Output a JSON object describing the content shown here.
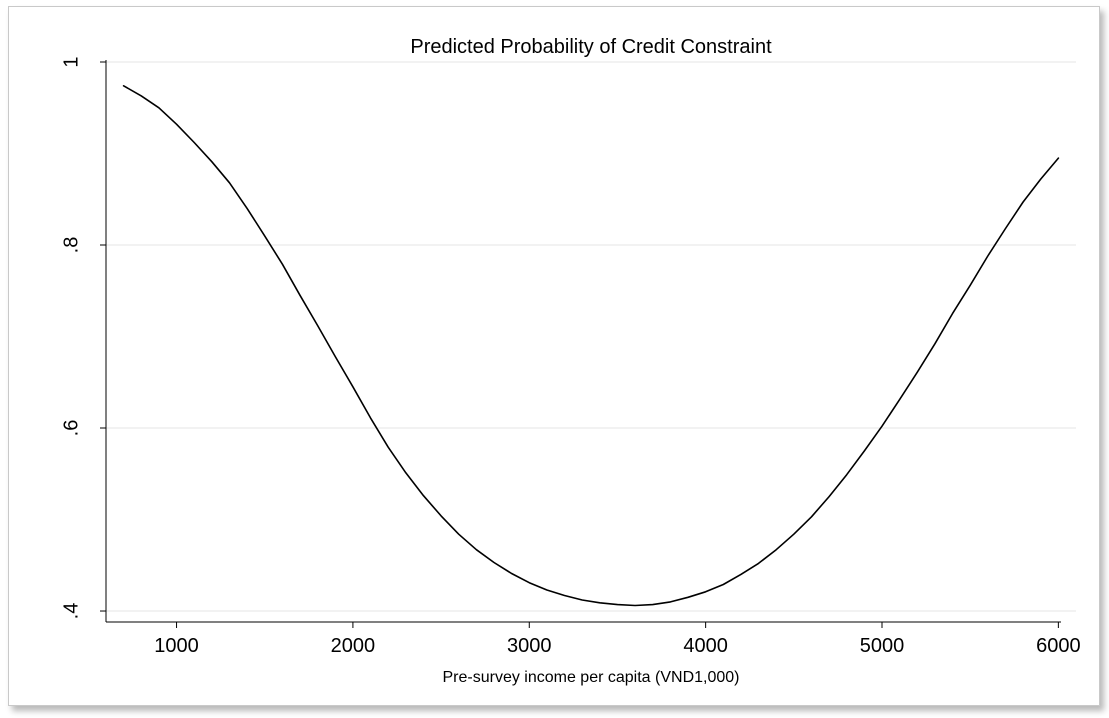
{
  "chart_data": {
    "type": "line",
    "title": "Predicted Probability of Credit Constraint",
    "xlabel": "Pre-survey income per capita (VND1,000)",
    "ylabel": "",
    "xlim": [
      600,
      6100
    ],
    "ylim": [
      0.388,
      1.0
    ],
    "xticks": [
      1000,
      2000,
      3000,
      4000,
      5000,
      6000
    ],
    "yticks": [
      0.4,
      0.6,
      0.8,
      1.0
    ],
    "xtick_labels": [
      "1000",
      "2000",
      "3000",
      "4000",
      "5000",
      "6000"
    ],
    "ytick_labels": [
      ".4",
      ".6",
      ".8",
      "1"
    ],
    "grid": true,
    "series": [
      {
        "color": "#000000",
        "x": [
          700,
          800,
          900,
          1000,
          1100,
          1200,
          1300,
          1400,
          1500,
          1600,
          1700,
          1800,
          1900,
          2000,
          2100,
          2200,
          2300,
          2400,
          2500,
          2600,
          2700,
          2800,
          2900,
          3000,
          3100,
          3200,
          3300,
          3400,
          3500,
          3600,
          3700,
          3800,
          3900,
          4000,
          4100,
          4200,
          4300,
          4400,
          4500,
          4600,
          4700,
          4800,
          4900,
          5000,
          5100,
          5200,
          5300,
          5400,
          5500,
          5600,
          5700,
          5800,
          5900,
          6000
        ],
        "y": [
          0.974,
          0.963,
          0.95,
          0.932,
          0.912,
          0.891,
          0.868,
          0.84,
          0.81,
          0.779,
          0.745,
          0.712,
          0.678,
          0.645,
          0.611,
          0.579,
          0.551,
          0.526,
          0.504,
          0.484,
          0.467,
          0.453,
          0.441,
          0.431,
          0.423,
          0.417,
          0.412,
          0.409,
          0.407,
          0.406,
          0.407,
          0.41,
          0.415,
          0.421,
          0.429,
          0.44,
          0.452,
          0.467,
          0.484,
          0.503,
          0.525,
          0.549,
          0.575,
          0.602,
          0.631,
          0.661,
          0.692,
          0.725,
          0.756,
          0.788,
          0.818,
          0.847,
          0.872,
          0.895
        ]
      }
    ]
  }
}
